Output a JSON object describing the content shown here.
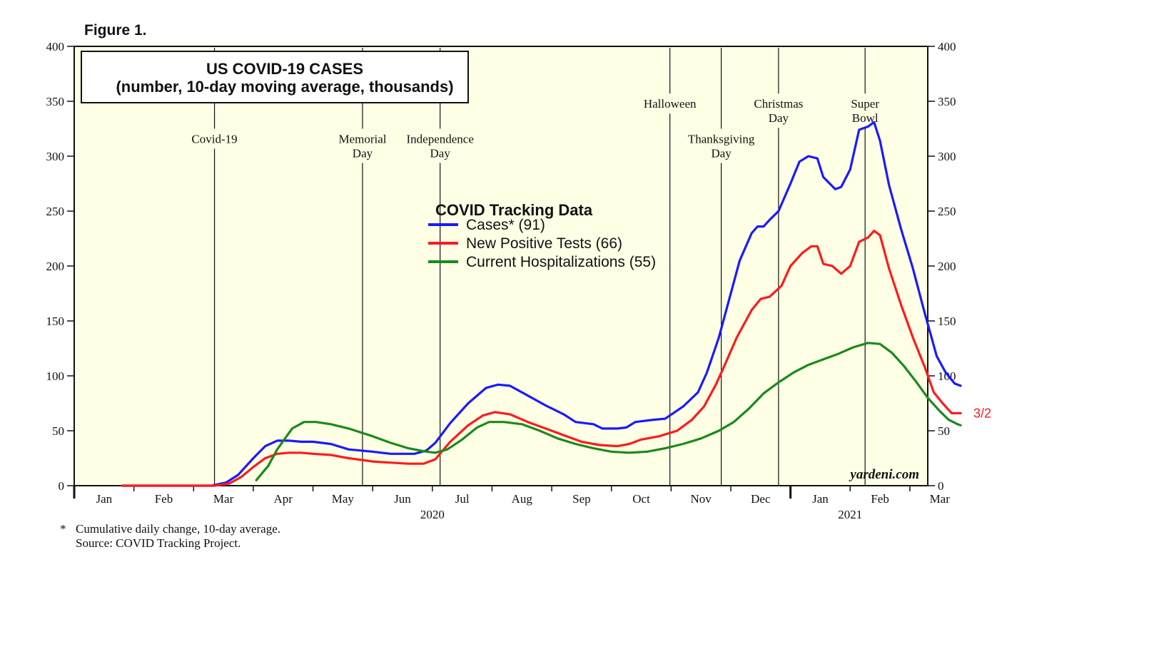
{
  "figure_label": "Figure 1.",
  "footnote": {
    "marker": "*",
    "note": "Cumulative daily change, 10-day average.",
    "source": "Source: COVID Tracking Project."
  },
  "chart_data": {
    "type": "line",
    "title_line1": "US COVID-19 CASES",
    "title_line2": "(number, 10-day moving average, thousands)",
    "ylim": [
      0,
      400
    ],
    "yticks": [
      0,
      50,
      100,
      150,
      200,
      250,
      300,
      350,
      400
    ],
    "x_domain_months": [
      0,
      14.3
    ],
    "month_labels": [
      {
        "label": "Jan",
        "month": 0.5
      },
      {
        "label": "Feb",
        "month": 1.5
      },
      {
        "label": "Mar",
        "month": 2.5
      },
      {
        "label": "Apr",
        "month": 3.5
      },
      {
        "label": "May",
        "month": 4.5
      },
      {
        "label": "Jun",
        "month": 5.5
      },
      {
        "label": "Jul",
        "month": 6.5
      },
      {
        "label": "Aug",
        "month": 7.5
      },
      {
        "label": "Sep",
        "month": 8.5
      },
      {
        "label": "Oct",
        "month": 9.5
      },
      {
        "label": "Nov",
        "month": 10.5
      },
      {
        "label": "Dec",
        "month": 11.5
      },
      {
        "label": "Jan",
        "month": 12.5
      },
      {
        "label": "Feb",
        "month": 13.5
      },
      {
        "label": "Mar",
        "month": 14.5
      }
    ],
    "year_labels": [
      {
        "label": "2020",
        "month": 6.0
      },
      {
        "label": "2021",
        "month": 13.0
      }
    ],
    "year_boundary_month": 12,
    "events": [
      {
        "line1": "Covid-19",
        "line2": "",
        "month": 2.35,
        "label_value": 312
      },
      {
        "line1": "Memorial",
        "line2": "Day",
        "month": 4.83,
        "label_value": 312
      },
      {
        "line1": "Independence",
        "line2": "Day",
        "month": 6.13,
        "label_value": 312
      },
      {
        "line1": "Halloween",
        "line2": "",
        "month": 9.98,
        "label_value": 344
      },
      {
        "line1": "Thanksgiving",
        "line2": "Day",
        "month": 10.84,
        "label_value": 312
      },
      {
        "line1": "Christmas",
        "line2": "Day",
        "month": 11.8,
        "label_value": 344
      },
      {
        "line1": "Super",
        "line2": "Bowl",
        "month": 13.25,
        "label_value": 344
      }
    ],
    "legend": {
      "title": "COVID Tracking Data",
      "position": "center"
    },
    "series": [
      {
        "name": "Cases* (91)",
        "color": "#1a1aff",
        "points": [
          [
            0.8,
            0
          ],
          [
            2.3,
            0
          ],
          [
            2.55,
            3
          ],
          [
            2.75,
            10
          ],
          [
            3.0,
            25
          ],
          [
            3.2,
            36
          ],
          [
            3.4,
            41
          ],
          [
            3.6,
            41
          ],
          [
            3.8,
            40
          ],
          [
            4.0,
            40
          ],
          [
            4.3,
            38
          ],
          [
            4.6,
            33
          ],
          [
            5.0,
            31
          ],
          [
            5.3,
            29
          ],
          [
            5.7,
            29
          ],
          [
            5.9,
            32
          ],
          [
            6.05,
            39
          ],
          [
            6.3,
            57
          ],
          [
            6.6,
            75
          ],
          [
            6.9,
            89
          ],
          [
            7.1,
            92
          ],
          [
            7.3,
            91
          ],
          [
            7.6,
            82
          ],
          [
            7.9,
            73
          ],
          [
            8.2,
            65
          ],
          [
            8.4,
            58
          ],
          [
            8.7,
            56
          ],
          [
            8.85,
            52
          ],
          [
            9.1,
            52
          ],
          [
            9.25,
            53
          ],
          [
            9.4,
            58
          ],
          [
            9.7,
            60
          ],
          [
            9.9,
            61
          ],
          [
            10.2,
            72
          ],
          [
            10.45,
            85
          ],
          [
            10.6,
            103
          ],
          [
            10.8,
            135
          ],
          [
            10.95,
            165
          ],
          [
            11.15,
            205
          ],
          [
            11.35,
            230
          ],
          [
            11.45,
            236
          ],
          [
            11.55,
            236
          ],
          [
            11.65,
            242
          ],
          [
            11.8,
            250
          ],
          [
            12.0,
            275
          ],
          [
            12.15,
            295
          ],
          [
            12.3,
            300
          ],
          [
            12.45,
            298
          ],
          [
            12.55,
            281
          ],
          [
            12.75,
            270
          ],
          [
            12.85,
            272
          ],
          [
            13.0,
            288
          ],
          [
            13.15,
            324
          ],
          [
            13.3,
            327
          ],
          [
            13.4,
            331
          ],
          [
            13.5,
            314
          ],
          [
            13.65,
            274
          ],
          [
            13.85,
            234
          ],
          [
            14.05,
            198
          ],
          [
            14.25,
            157
          ],
          [
            14.45,
            118
          ],
          [
            14.6,
            103
          ],
          [
            14.75,
            93
          ],
          [
            14.85,
            91
          ]
        ]
      },
      {
        "name": "New Positive Tests (66)",
        "color": "#ff1a1a",
        "points": [
          [
            0.8,
            0
          ],
          [
            2.35,
            0
          ],
          [
            2.6,
            2
          ],
          [
            2.8,
            8
          ],
          [
            3.0,
            17
          ],
          [
            3.2,
            25
          ],
          [
            3.4,
            29
          ],
          [
            3.6,
            30
          ],
          [
            3.8,
            30
          ],
          [
            4.0,
            29
          ],
          [
            4.3,
            28
          ],
          [
            4.6,
            25
          ],
          [
            5.0,
            22
          ],
          [
            5.3,
            21
          ],
          [
            5.6,
            20
          ],
          [
            5.85,
            20
          ],
          [
            6.05,
            24
          ],
          [
            6.3,
            40
          ],
          [
            6.6,
            55
          ],
          [
            6.85,
            64
          ],
          [
            7.05,
            67
          ],
          [
            7.3,
            65
          ],
          [
            7.6,
            58
          ],
          [
            7.9,
            52
          ],
          [
            8.2,
            46
          ],
          [
            8.5,
            40
          ],
          [
            8.8,
            37
          ],
          [
            9.1,
            36
          ],
          [
            9.3,
            38
          ],
          [
            9.5,
            42
          ],
          [
            9.8,
            45
          ],
          [
            10.1,
            50
          ],
          [
            10.35,
            60
          ],
          [
            10.55,
            72
          ],
          [
            10.75,
            92
          ],
          [
            10.9,
            110
          ],
          [
            11.1,
            135
          ],
          [
            11.35,
            160
          ],
          [
            11.5,
            170
          ],
          [
            11.65,
            172
          ],
          [
            11.85,
            182
          ],
          [
            12.0,
            200
          ],
          [
            12.2,
            212
          ],
          [
            12.35,
            218
          ],
          [
            12.45,
            218
          ],
          [
            12.55,
            202
          ],
          [
            12.7,
            200
          ],
          [
            12.85,
            193
          ],
          [
            13.0,
            200
          ],
          [
            13.15,
            222
          ],
          [
            13.3,
            226
          ],
          [
            13.4,
            232
          ],
          [
            13.5,
            228
          ],
          [
            13.65,
            198
          ],
          [
            13.85,
            165
          ],
          [
            14.05,
            135
          ],
          [
            14.25,
            108
          ],
          [
            14.4,
            85
          ],
          [
            14.55,
            75
          ],
          [
            14.7,
            66
          ],
          [
            14.85,
            66
          ]
        ]
      },
      {
        "name": "Current Hospitalizations (55)",
        "color": "#1a8a1a",
        "points": [
          [
            3.05,
            5
          ],
          [
            3.25,
            18
          ],
          [
            3.4,
            33
          ],
          [
            3.65,
            52
          ],
          [
            3.85,
            58
          ],
          [
            4.05,
            58
          ],
          [
            4.3,
            56
          ],
          [
            4.6,
            52
          ],
          [
            5.0,
            45
          ],
          [
            5.3,
            39
          ],
          [
            5.6,
            34
          ],
          [
            5.9,
            31
          ],
          [
            6.05,
            30
          ],
          [
            6.25,
            33
          ],
          [
            6.5,
            42
          ],
          [
            6.75,
            53
          ],
          [
            6.95,
            58
          ],
          [
            7.2,
            58
          ],
          [
            7.5,
            56
          ],
          [
            7.8,
            50
          ],
          [
            8.1,
            43
          ],
          [
            8.4,
            38
          ],
          [
            8.7,
            34
          ],
          [
            9.0,
            31
          ],
          [
            9.3,
            30
          ],
          [
            9.6,
            31
          ],
          [
            9.9,
            34
          ],
          [
            10.2,
            38
          ],
          [
            10.5,
            43
          ],
          [
            10.8,
            50
          ],
          [
            11.05,
            58
          ],
          [
            11.3,
            70
          ],
          [
            11.55,
            84
          ],
          [
            11.8,
            94
          ],
          [
            12.05,
            103
          ],
          [
            12.3,
            110
          ],
          [
            12.55,
            115
          ],
          [
            12.8,
            120
          ],
          [
            13.05,
            126
          ],
          [
            13.3,
            130
          ],
          [
            13.5,
            129
          ],
          [
            13.7,
            121
          ],
          [
            13.9,
            109
          ],
          [
            14.1,
            95
          ],
          [
            14.3,
            80
          ],
          [
            14.5,
            68
          ],
          [
            14.65,
            60
          ],
          [
            14.8,
            56
          ],
          [
            14.85,
            55
          ]
        ]
      }
    ],
    "end_label": {
      "text": "3/2",
      "color": "#ff1a1a"
    },
    "watermark": "yardeni.com"
  }
}
